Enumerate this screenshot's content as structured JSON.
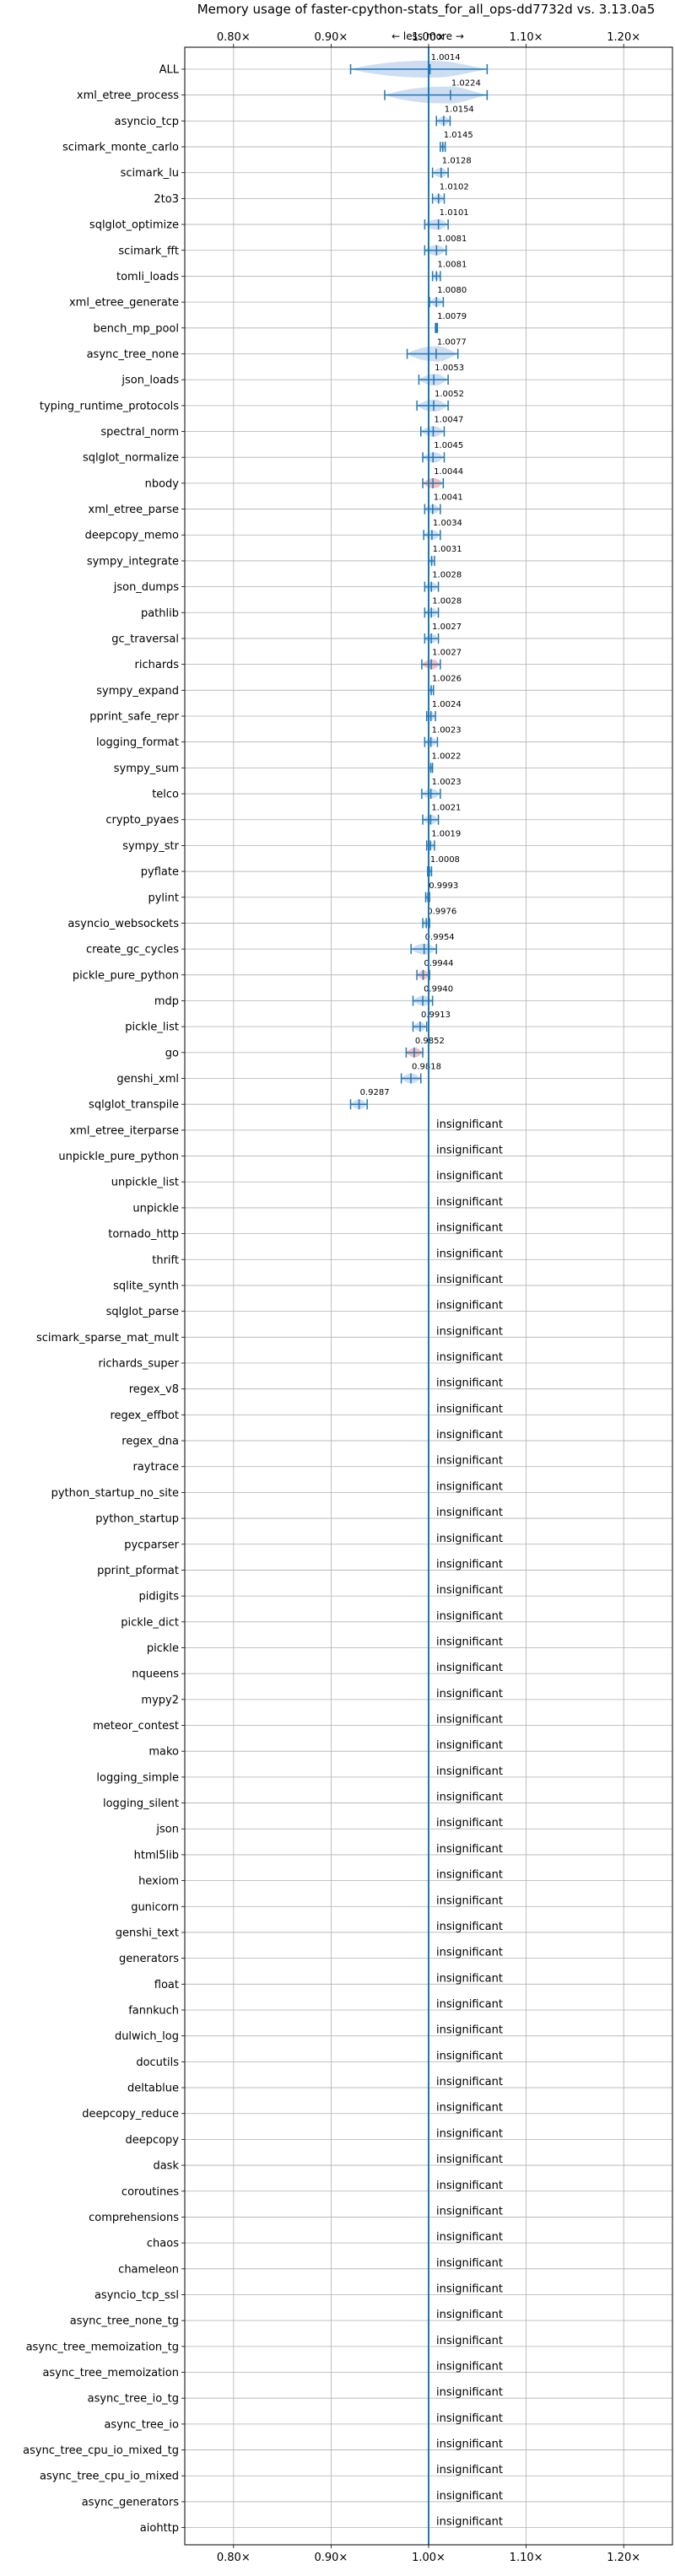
{
  "chart_data": {
    "type": "violin",
    "title": "Memory usage of faster-cpython-stats_for_all_ops-dd7732d vs. 3.13.0a5",
    "direction_label": "← less   more →",
    "x_ticks": [
      "0.80×",
      "0.90×",
      "1.00×",
      "1.10×",
      "1.20×"
    ],
    "x_tick_values": [
      0.8,
      0.9,
      1.0,
      1.1,
      1.2
    ],
    "xlim": [
      0.75,
      1.25
    ],
    "reference_line": 1.0,
    "grid": true,
    "insignificant_label": "insignificant",
    "colors": {
      "normal": "#1f77b4",
      "highlight": "#d62728",
      "fill": "#aec7e8",
      "highlight_fill": "#f4a6a6",
      "grid": "#b0b0b0"
    },
    "benchmarks": [
      {
        "name": "ALL",
        "value": 1.0014,
        "label": "1.0014",
        "low": 0.92,
        "high": 1.06,
        "highlight": false
      },
      {
        "name": "xml_etree_process",
        "value": 1.0224,
        "label": "1.0224",
        "low": 0.955,
        "high": 1.06,
        "highlight": false
      },
      {
        "name": "asyncio_tcp",
        "value": 1.0154,
        "label": "1.0154",
        "low": 1.008,
        "high": 1.022,
        "highlight": false
      },
      {
        "name": "scimark_monte_carlo",
        "value": 1.0145,
        "label": "1.0145",
        "low": 1.012,
        "high": 1.017,
        "highlight": false
      },
      {
        "name": "scimark_lu",
        "value": 1.0128,
        "label": "1.0128",
        "low": 1.004,
        "high": 1.02,
        "highlight": false
      },
      {
        "name": "2to3",
        "value": 1.0102,
        "label": "1.0102",
        "low": 1.004,
        "high": 1.016,
        "highlight": false
      },
      {
        "name": "sqlglot_optimize",
        "value": 1.0101,
        "label": "1.0101",
        "low": 0.996,
        "high": 1.02,
        "highlight": false
      },
      {
        "name": "scimark_fft",
        "value": 1.0081,
        "label": "1.0081",
        "low": 0.996,
        "high": 1.018,
        "highlight": false
      },
      {
        "name": "tomli_loads",
        "value": 1.0081,
        "label": "1.0081",
        "low": 1.004,
        "high": 1.012,
        "highlight": false
      },
      {
        "name": "xml_etree_generate",
        "value": 1.008,
        "label": "1.0080",
        "low": 1.001,
        "high": 1.015,
        "highlight": false
      },
      {
        "name": "bench_mp_pool",
        "value": 1.0079,
        "label": "1.0079",
        "low": 1.007,
        "high": 1.009,
        "highlight": false
      },
      {
        "name": "async_tree_none",
        "value": 1.0077,
        "label": "1.0077",
        "low": 0.978,
        "high": 1.03,
        "highlight": false
      },
      {
        "name": "json_loads",
        "value": 1.0053,
        "label": "1.0053",
        "low": 0.99,
        "high": 1.02,
        "highlight": false
      },
      {
        "name": "typing_runtime_protocols",
        "value": 1.0052,
        "label": "1.0052",
        "low": 0.988,
        "high": 1.02,
        "highlight": false
      },
      {
        "name": "spectral_norm",
        "value": 1.0047,
        "label": "1.0047",
        "low": 0.992,
        "high": 1.016,
        "highlight": false
      },
      {
        "name": "sqlglot_normalize",
        "value": 1.0045,
        "label": "1.0045",
        "low": 0.994,
        "high": 1.016,
        "highlight": false
      },
      {
        "name": "nbody",
        "value": 1.0044,
        "label": "1.0044",
        "low": 0.994,
        "high": 1.015,
        "highlight": true
      },
      {
        "name": "xml_etree_parse",
        "value": 1.0041,
        "label": "1.0041",
        "low": 0.996,
        "high": 1.012,
        "highlight": false
      },
      {
        "name": "deepcopy_memo",
        "value": 1.0034,
        "label": "1.0034",
        "low": 0.995,
        "high": 1.012,
        "highlight": false
      },
      {
        "name": "sympy_integrate",
        "value": 1.0031,
        "label": "1.0031",
        "low": 1.0,
        "high": 1.006,
        "highlight": false
      },
      {
        "name": "json_dumps",
        "value": 1.0028,
        "label": "1.0028",
        "low": 0.996,
        "high": 1.01,
        "highlight": false
      },
      {
        "name": "pathlib",
        "value": 1.0028,
        "label": "1.0028",
        "low": 0.996,
        "high": 1.01,
        "highlight": false
      },
      {
        "name": "gc_traversal",
        "value": 1.0027,
        "label": "1.0027",
        "low": 0.996,
        "high": 1.01,
        "highlight": false
      },
      {
        "name": "richards",
        "value": 1.0027,
        "label": "1.0027",
        "low": 0.993,
        "high": 1.012,
        "highlight": true
      },
      {
        "name": "sympy_expand",
        "value": 1.0026,
        "label": "1.0026",
        "low": 1.0,
        "high": 1.005,
        "highlight": false
      },
      {
        "name": "pprint_safe_repr",
        "value": 1.0024,
        "label": "1.0024",
        "low": 0.998,
        "high": 1.007,
        "highlight": false
      },
      {
        "name": "logging_format",
        "value": 1.0023,
        "label": "1.0023",
        "low": 0.996,
        "high": 1.009,
        "highlight": false
      },
      {
        "name": "sympy_sum",
        "value": 1.0022,
        "label": "1.0022",
        "low": 1.0,
        "high": 1.004,
        "highlight": false
      },
      {
        "name": "telco",
        "value": 1.0023,
        "label": "1.0023",
        "low": 0.993,
        "high": 1.012,
        "highlight": false
      },
      {
        "name": "crypto_pyaes",
        "value": 1.0021,
        "label": "1.0021",
        "low": 0.994,
        "high": 1.01,
        "highlight": false
      },
      {
        "name": "sympy_str",
        "value": 1.0019,
        "label": "1.0019",
        "low": 0.998,
        "high": 1.006,
        "highlight": false
      },
      {
        "name": "pyflate",
        "value": 1.0008,
        "label": "1.0008",
        "low": 0.999,
        "high": 1.003,
        "highlight": false
      },
      {
        "name": "pylint",
        "value": 0.9993,
        "label": "0.9993",
        "low": 0.997,
        "high": 1.001,
        "highlight": false
      },
      {
        "name": "asyncio_websockets",
        "value": 0.9976,
        "label": "0.9976",
        "low": 0.994,
        "high": 1.001,
        "highlight": false
      },
      {
        "name": "create_gc_cycles",
        "value": 0.9954,
        "label": "0.9954",
        "low": 0.982,
        "high": 1.008,
        "highlight": false
      },
      {
        "name": "pickle_pure_python",
        "value": 0.9944,
        "label": "0.9944",
        "low": 0.988,
        "high": 1.001,
        "highlight": true
      },
      {
        "name": "mdp",
        "value": 0.994,
        "label": "0.9940",
        "low": 0.984,
        "high": 1.004,
        "highlight": false
      },
      {
        "name": "pickle_list",
        "value": 0.9913,
        "label": "0.9913",
        "low": 0.984,
        "high": 0.998,
        "highlight": false
      },
      {
        "name": "go",
        "value": 0.9852,
        "label": "0.9852",
        "low": 0.977,
        "high": 0.994,
        "highlight": true
      },
      {
        "name": "genshi_xml",
        "value": 0.9818,
        "label": "0.9818",
        "low": 0.972,
        "high": 0.992,
        "highlight": false
      },
      {
        "name": "sqlglot_transpile",
        "value": 0.9287,
        "label": "0.9287",
        "low": 0.92,
        "high": 0.937,
        "highlight": false
      },
      {
        "name": "xml_etree_iterparse",
        "insignificant": true
      },
      {
        "name": "unpickle_pure_python",
        "insignificant": true
      },
      {
        "name": "unpickle_list",
        "insignificant": true
      },
      {
        "name": "unpickle",
        "insignificant": true
      },
      {
        "name": "tornado_http",
        "insignificant": true
      },
      {
        "name": "thrift",
        "insignificant": true
      },
      {
        "name": "sqlite_synth",
        "insignificant": true
      },
      {
        "name": "sqlglot_parse",
        "insignificant": true
      },
      {
        "name": "scimark_sparse_mat_mult",
        "insignificant": true
      },
      {
        "name": "richards_super",
        "insignificant": true
      },
      {
        "name": "regex_v8",
        "insignificant": true
      },
      {
        "name": "regex_effbot",
        "insignificant": true
      },
      {
        "name": "regex_dna",
        "insignificant": true
      },
      {
        "name": "raytrace",
        "insignificant": true
      },
      {
        "name": "python_startup_no_site",
        "insignificant": true
      },
      {
        "name": "python_startup",
        "insignificant": true
      },
      {
        "name": "pycparser",
        "insignificant": true
      },
      {
        "name": "pprint_pformat",
        "insignificant": true
      },
      {
        "name": "pidigits",
        "insignificant": true
      },
      {
        "name": "pickle_dict",
        "insignificant": true
      },
      {
        "name": "pickle",
        "insignificant": true
      },
      {
        "name": "nqueens",
        "insignificant": true
      },
      {
        "name": "mypy2",
        "insignificant": true
      },
      {
        "name": "meteor_contest",
        "insignificant": true
      },
      {
        "name": "mako",
        "insignificant": true
      },
      {
        "name": "logging_simple",
        "insignificant": true
      },
      {
        "name": "logging_silent",
        "insignificant": true
      },
      {
        "name": "json",
        "insignificant": true
      },
      {
        "name": "html5lib",
        "insignificant": true
      },
      {
        "name": "hexiom",
        "insignificant": true
      },
      {
        "name": "gunicorn",
        "insignificant": true
      },
      {
        "name": "genshi_text",
        "insignificant": true
      },
      {
        "name": "generators",
        "insignificant": true
      },
      {
        "name": "float",
        "insignificant": true
      },
      {
        "name": "fannkuch",
        "insignificant": true
      },
      {
        "name": "dulwich_log",
        "insignificant": true
      },
      {
        "name": "docutils",
        "insignificant": true
      },
      {
        "name": "deltablue",
        "insignificant": true
      },
      {
        "name": "deepcopy_reduce",
        "insignificant": true
      },
      {
        "name": "deepcopy",
        "insignificant": true
      },
      {
        "name": "dask",
        "insignificant": true
      },
      {
        "name": "coroutines",
        "insignificant": true
      },
      {
        "name": "comprehensions",
        "insignificant": true
      },
      {
        "name": "chaos",
        "insignificant": true
      },
      {
        "name": "chameleon",
        "insignificant": true
      },
      {
        "name": "asyncio_tcp_ssl",
        "insignificant": true
      },
      {
        "name": "async_tree_none_tg",
        "insignificant": true
      },
      {
        "name": "async_tree_memoization_tg",
        "insignificant": true
      },
      {
        "name": "async_tree_memoization",
        "insignificant": true
      },
      {
        "name": "async_tree_io_tg",
        "insignificant": true
      },
      {
        "name": "async_tree_io",
        "insignificant": true
      },
      {
        "name": "async_tree_cpu_io_mixed_tg",
        "insignificant": true
      },
      {
        "name": "async_tree_cpu_io_mixed",
        "insignificant": true
      },
      {
        "name": "async_generators",
        "insignificant": true
      },
      {
        "name": "aiohttp",
        "insignificant": true
      }
    ]
  }
}
